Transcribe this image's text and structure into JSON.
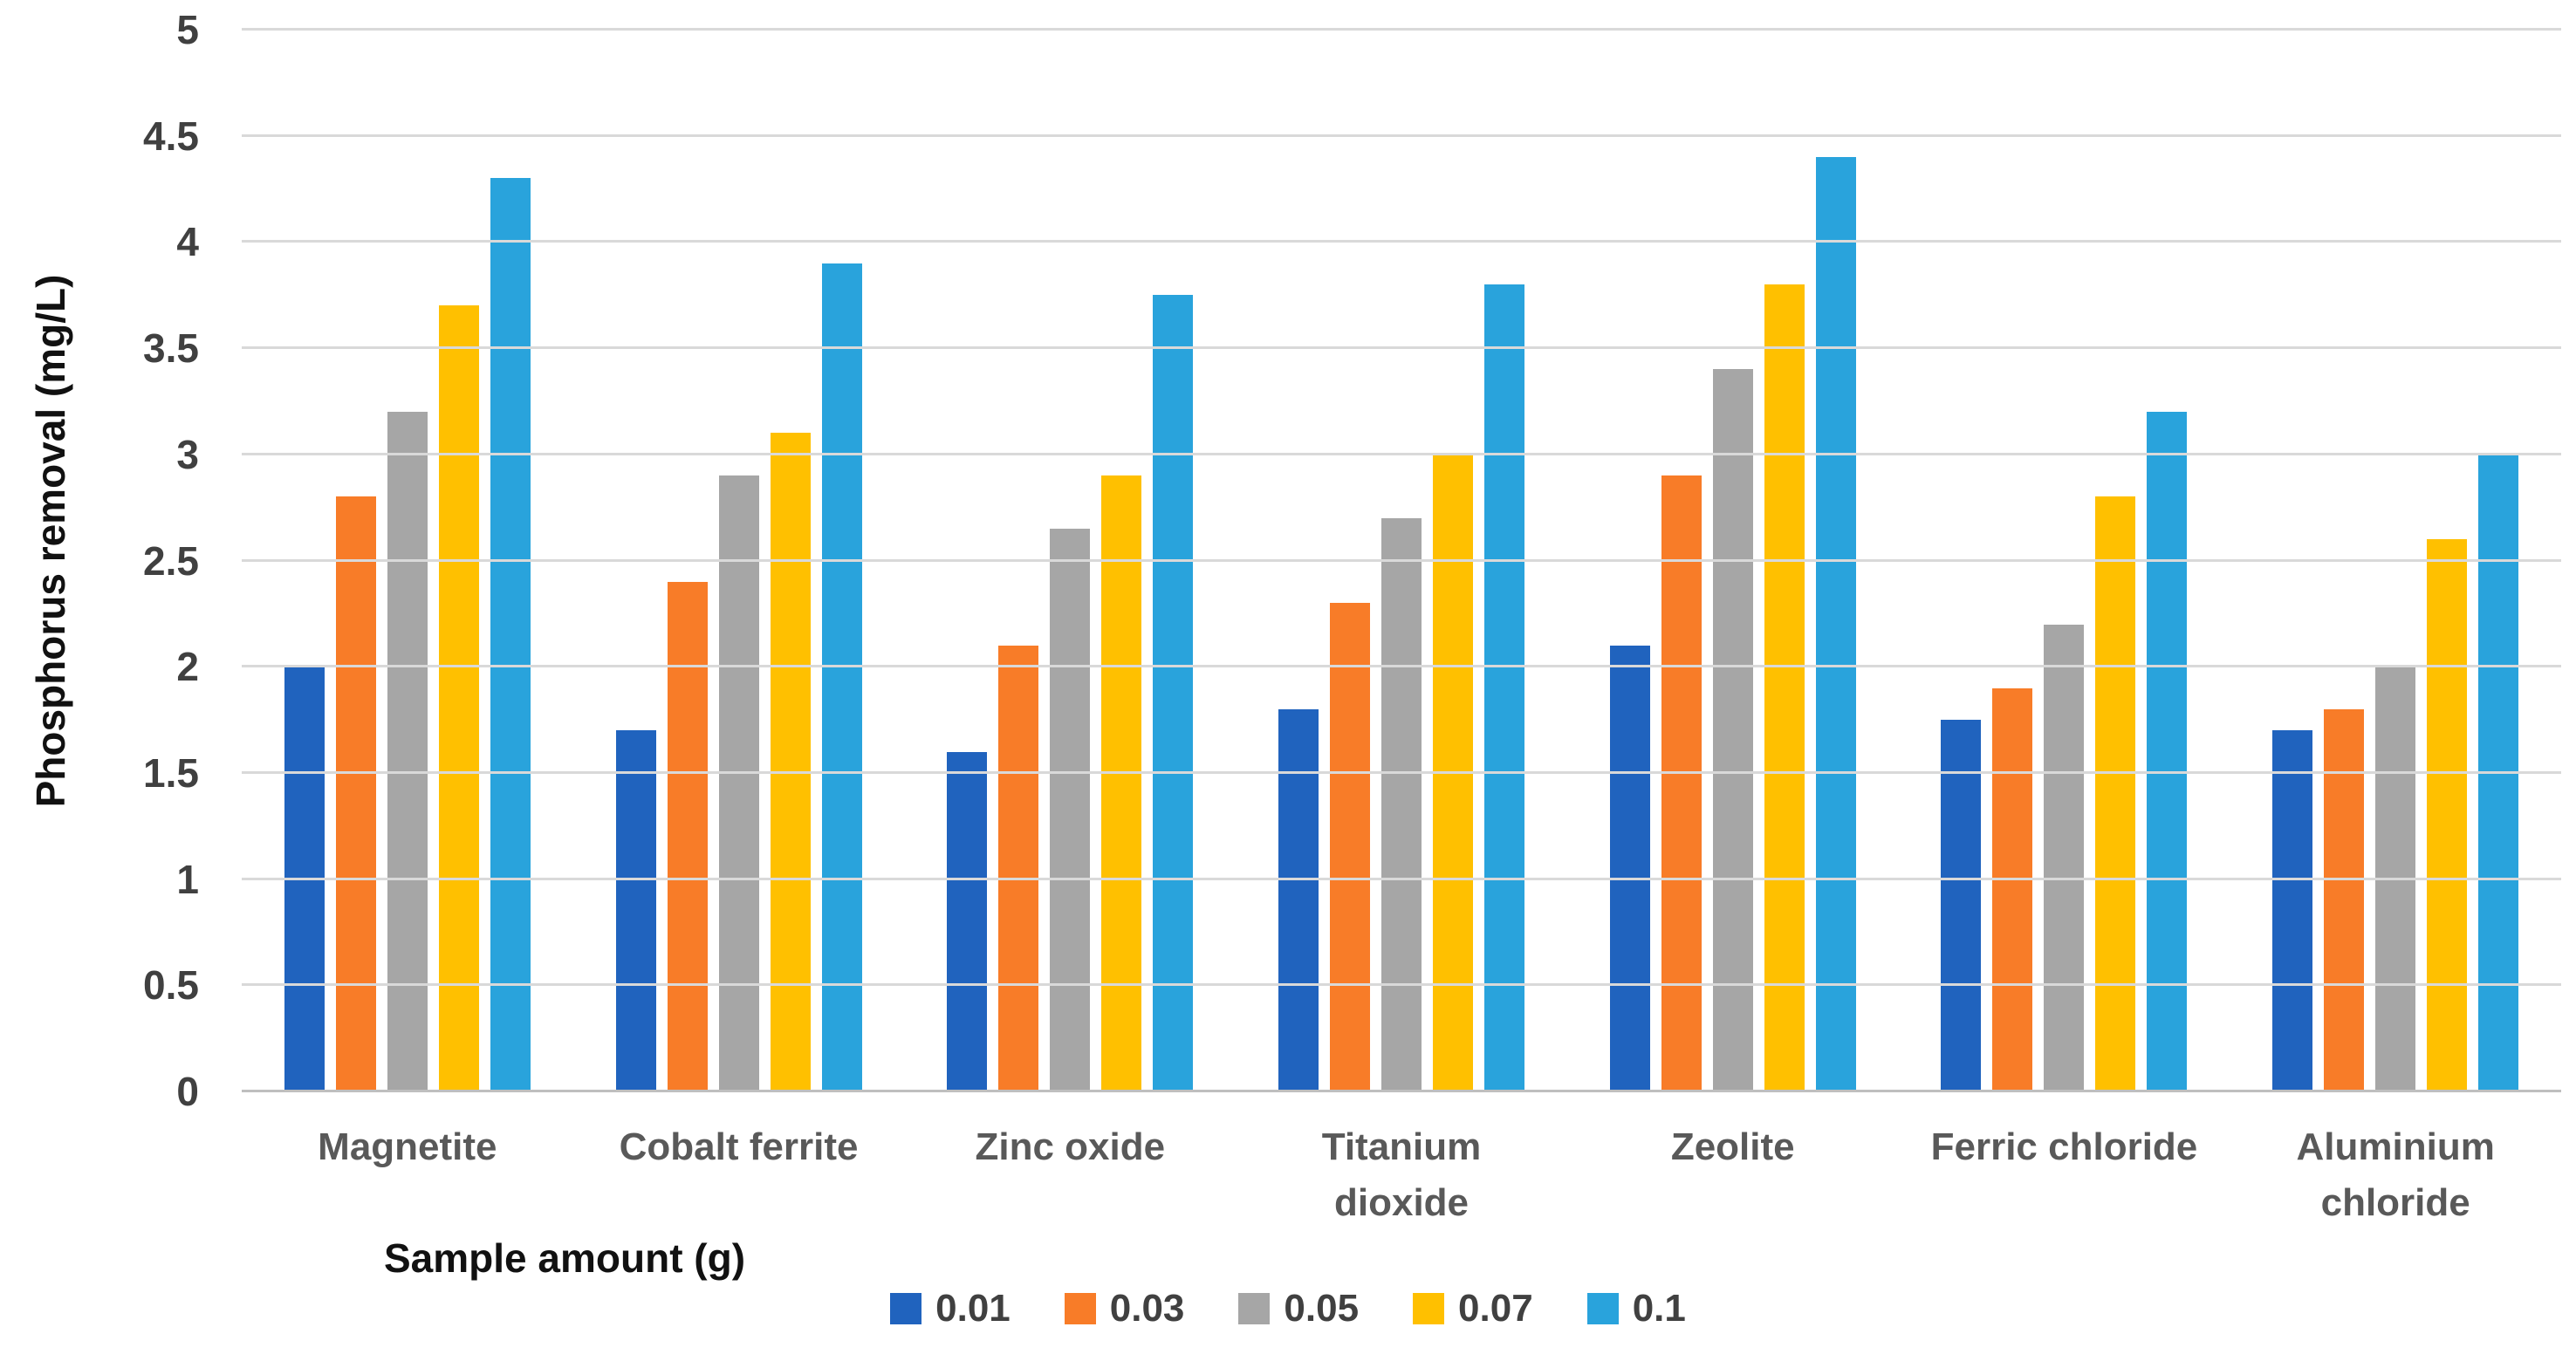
{
  "chart_data": {
    "type": "bar",
    "title": "",
    "xlabel": "Sample amount (g)",
    "ylabel": "Phosphorus removal (mg/L)",
    "ylim": [
      0,
      5
    ],
    "ytick_step": 0.5,
    "yticks": [
      0,
      0.5,
      1,
      1.5,
      2,
      2.5,
      3,
      3.5,
      4,
      4.5,
      5
    ],
    "grid": true,
    "legend_position": "bottom",
    "categories": [
      "Magnetite",
      "Cobalt ferrite",
      "Zinc oxide",
      "Titanium dioxide",
      "Zeolite",
      "Ferric chloride",
      "Aluminium chloride"
    ],
    "category_lines": [
      [
        "Magnetite"
      ],
      [
        "Cobalt ferrite"
      ],
      [
        "Zinc oxide"
      ],
      [
        "Titanium",
        "dioxide"
      ],
      [
        "Zeolite"
      ],
      [
        "Ferric chloride"
      ],
      [
        "Aluminium",
        "chloride"
      ]
    ],
    "series": [
      {
        "name": "0.01",
        "color": "#2063BE",
        "values": [
          2.0,
          1.7,
          1.6,
          1.8,
          2.1,
          1.75,
          1.7
        ]
      },
      {
        "name": "0.03",
        "color": "#F87C28",
        "values": [
          2.8,
          2.4,
          2.1,
          2.3,
          2.9,
          1.9,
          1.8
        ]
      },
      {
        "name": "0.05",
        "color": "#A6A6A6",
        "values": [
          3.2,
          2.9,
          2.65,
          2.7,
          3.4,
          2.2,
          2.0
        ]
      },
      {
        "name": "0.07",
        "color": "#FFC000",
        "values": [
          3.7,
          3.1,
          2.9,
          3.0,
          3.8,
          2.8,
          2.6
        ]
      },
      {
        "name": "0.1",
        "color": "#29A3DC",
        "values": [
          4.3,
          3.9,
          3.75,
          3.8,
          4.4,
          3.2,
          3.0
        ]
      }
    ]
  },
  "colors": {
    "gridline": "#D9D9D9",
    "baseline": "#BFBFBF",
    "tick_label": "#404040",
    "category_label": "#595959",
    "axis_title": "#111111",
    "background": "#FFFFFF"
  }
}
